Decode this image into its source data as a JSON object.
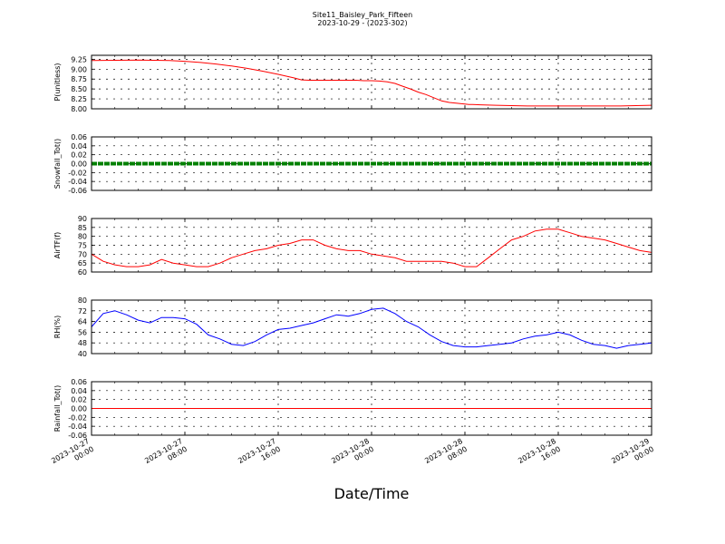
{
  "title": "Site11_Baisley_Park_Fifteen",
  "subtitle": "2023-10-29 - (2023-302)",
  "chart_data": {
    "type": "line",
    "xlabel": "Date/Time",
    "x_range": [
      "2023-10-27 00:00",
      "2023-10-29 00:00"
    ],
    "x_ticks": [
      {
        "d": "2023-10-27",
        "t": "00:00"
      },
      {
        "d": "2023-10-27",
        "t": "08:00"
      },
      {
        "d": "2023-10-27",
        "t": "16:00"
      },
      {
        "d": "2023-10-28",
        "t": "00:00"
      },
      {
        "d": "2023-10-28",
        "t": "08:00"
      },
      {
        "d": "2023-10-28",
        "t": "16:00"
      },
      {
        "d": "2023-10-29",
        "t": "00:00"
      }
    ],
    "grid": true,
    "panels": [
      {
        "ylabel": "P(unitless)",
        "ylim": [
          8.0,
          9.35
        ],
        "yticks": [
          "8.00",
          "8.25",
          "8.50",
          "8.75",
          "9.00",
          "9.25"
        ],
        "color": "#ff0000",
        "style": "line",
        "points": [
          [
            0,
            9.22
          ],
          [
            6,
            9.23
          ],
          [
            10,
            9.22
          ],
          [
            12,
            9.2
          ],
          [
            14,
            9.17
          ],
          [
            16,
            9.13
          ],
          [
            18,
            9.08
          ],
          [
            20,
            9.02
          ],
          [
            22,
            8.95
          ],
          [
            24,
            8.87
          ],
          [
            26,
            8.78
          ],
          [
            27,
            8.73
          ],
          [
            28,
            8.72
          ],
          [
            30,
            8.72
          ],
          [
            32,
            8.72
          ],
          [
            34,
            8.72
          ],
          [
            35,
            8.71
          ],
          [
            36,
            8.71
          ],
          [
            37,
            8.7
          ],
          [
            38,
            8.68
          ],
          [
            39,
            8.64
          ],
          [
            40,
            8.57
          ],
          [
            41,
            8.5
          ],
          [
            42,
            8.42
          ],
          [
            43,
            8.36
          ],
          [
            44,
            8.28
          ],
          [
            45,
            8.2
          ],
          [
            46,
            8.16
          ],
          [
            47,
            8.14
          ],
          [
            48,
            8.12
          ],
          [
            48.5,
            8.11
          ],
          [
            49,
            8.11
          ],
          [
            50,
            8.1
          ],
          [
            52,
            8.09
          ],
          [
            54,
            8.08
          ],
          [
            56,
            8.07
          ],
          [
            58,
            8.07
          ],
          [
            60,
            8.07
          ],
          [
            62,
            8.07
          ],
          [
            64,
            8.07
          ],
          [
            66,
            8.07
          ],
          [
            68,
            8.07
          ],
          [
            70,
            8.08
          ],
          [
            72,
            8.09
          ]
        ]
      },
      {
        "ylabel": "Snowfall_Tot()",
        "ylim": [
          -0.06,
          0.06
        ],
        "yticks": [
          "-0.06",
          "-0.04",
          "-0.02",
          "0.00",
          "0.02",
          "0.04",
          "0.06"
        ],
        "color": "#008000",
        "style": "thick",
        "points": [
          [
            0,
            0
          ],
          [
            48,
            0
          ]
        ]
      },
      {
        "ylabel": "AirTF(f)",
        "ylim": [
          60,
          90
        ],
        "yticks": [
          "60",
          "65",
          "70",
          "75",
          "80",
          "85",
          "90"
        ],
        "color": "#ff0000",
        "style": "line",
        "points": [
          [
            0,
            70
          ],
          [
            1,
            66
          ],
          [
            2,
            64
          ],
          [
            3,
            63
          ],
          [
            4,
            63
          ],
          [
            5,
            64
          ],
          [
            6,
            67
          ],
          [
            7,
            65
          ],
          [
            8,
            64
          ],
          [
            9,
            63
          ],
          [
            10,
            63
          ],
          [
            11,
            65
          ],
          [
            12,
            68
          ],
          [
            13,
            70
          ],
          [
            14,
            72
          ],
          [
            15,
            73
          ],
          [
            16,
            75
          ],
          [
            17,
            76
          ],
          [
            18,
            78
          ],
          [
            19,
            78
          ],
          [
            20,
            75
          ],
          [
            21,
            73
          ],
          [
            22,
            72
          ],
          [
            23,
            72
          ],
          [
            24,
            70
          ],
          [
            25,
            69
          ],
          [
            26,
            68
          ],
          [
            27,
            66
          ],
          [
            28,
            66
          ],
          [
            29,
            66
          ],
          [
            30,
            66
          ],
          [
            31,
            65
          ],
          [
            32,
            63
          ],
          [
            33,
            63
          ],
          [
            34,
            68
          ],
          [
            35,
            73
          ],
          [
            36,
            78
          ],
          [
            37,
            80
          ],
          [
            38,
            83
          ],
          [
            39,
            84
          ],
          [
            40,
            84
          ],
          [
            41,
            82
          ],
          [
            42,
            80
          ],
          [
            43,
            79
          ],
          [
            44,
            78
          ],
          [
            45,
            76
          ],
          [
            46,
            74
          ],
          [
            47,
            72
          ],
          [
            48,
            71
          ]
        ]
      },
      {
        "ylabel": "RH(%)",
        "ylim": [
          40,
          80
        ],
        "yticks": [
          "40",
          "48",
          "56",
          "64",
          "72",
          "80"
        ],
        "color": "#0000ff",
        "style": "line",
        "points": [
          [
            0,
            60
          ],
          [
            1,
            70
          ],
          [
            2,
            72
          ],
          [
            3,
            69
          ],
          [
            4,
            65
          ],
          [
            5,
            63
          ],
          [
            6,
            67
          ],
          [
            7,
            67
          ],
          [
            8,
            66
          ],
          [
            9,
            62
          ],
          [
            10,
            54
          ],
          [
            11,
            51
          ],
          [
            12,
            47
          ],
          [
            13,
            46
          ],
          [
            14,
            49
          ],
          [
            15,
            54
          ],
          [
            16,
            58
          ],
          [
            17,
            59
          ],
          [
            18,
            61
          ],
          [
            19,
            63
          ],
          [
            20,
            66
          ],
          [
            21,
            69
          ],
          [
            22,
            68
          ],
          [
            23,
            70
          ],
          [
            24,
            73
          ],
          [
            25,
            74
          ],
          [
            26,
            70
          ],
          [
            27,
            64
          ],
          [
            28,
            60
          ],
          [
            29,
            54
          ],
          [
            30,
            49
          ],
          [
            31,
            46
          ],
          [
            32,
            45
          ],
          [
            33,
            45
          ],
          [
            34,
            46
          ],
          [
            35,
            47
          ],
          [
            36,
            48
          ],
          [
            37,
            51
          ],
          [
            38,
            53
          ],
          [
            39,
            54
          ],
          [
            40,
            56
          ],
          [
            41,
            54
          ],
          [
            42,
            50
          ],
          [
            43,
            47
          ],
          [
            44,
            46
          ],
          [
            45,
            44
          ],
          [
            46,
            46
          ],
          [
            47,
            47
          ],
          [
            48,
            48
          ]
        ]
      },
      {
        "ylabel": "Rainfall_Tot()",
        "ylim": [
          -0.06,
          0.06
        ],
        "yticks": [
          "-0.06",
          "-0.04",
          "-0.02",
          "0.00",
          "0.02",
          "0.04",
          "0.06"
        ],
        "color": "#ff0000",
        "style": "line",
        "points": [
          [
            0,
            0
          ],
          [
            48,
            0
          ]
        ]
      }
    ]
  }
}
